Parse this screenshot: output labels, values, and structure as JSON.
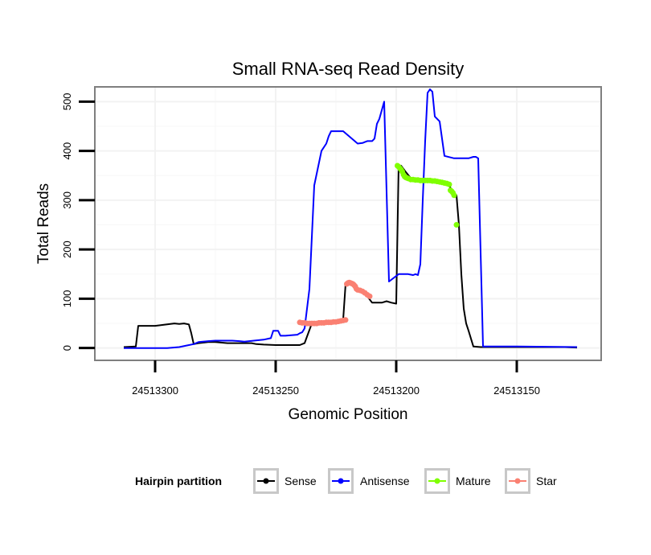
{
  "chart_data": {
    "type": "line",
    "title": "Small RNA-seq Read Density",
    "xlabel": "Genomic Position",
    "ylabel": "Total Reads",
    "x_reversed": true,
    "xlim": [
      24513325,
      24513115
    ],
    "ylim": [
      -25,
      530
    ],
    "x_ticks": [
      24513300,
      24513250,
      24513200,
      24513150
    ],
    "x_tick_labels": [
      "24513300",
      "24513250",
      "24513200",
      "24513150"
    ],
    "y_ticks": [
      0,
      100,
      200,
      300,
      400,
      500
    ],
    "y_tick_labels": [
      "0",
      "100",
      "200",
      "300",
      "400",
      "500"
    ],
    "grid": true,
    "legend": {
      "title": "Hairpin partition",
      "position": "bottom",
      "entries": [
        {
          "name": "Sense",
          "color": "#000000"
        },
        {
          "name": "Antisense",
          "color": "#0000ff"
        },
        {
          "name": "Mature",
          "color": "#7fff00"
        },
        {
          "name": "Star",
          "color": "#fa8072"
        }
      ]
    },
    "series": [
      {
        "name": "Sense",
        "color": "#000000",
        "style": "line",
        "x": [
          24513313,
          24513308,
          24513307,
          24513300,
          24513295,
          24513292,
          24513290,
          24513288,
          24513286,
          24513285,
          24513284,
          24513282,
          24513278,
          24513275,
          24513270,
          24513265,
          24513260,
          24513258,
          24513255,
          24513250,
          24513245,
          24513240,
          24513238,
          24513235,
          24513230,
          24513225,
          24513222,
          24513221,
          24513220,
          24513218,
          24513216,
          24513214,
          24513212,
          24513210,
          24513206,
          24513204,
          24513202,
          24513200,
          24513199,
          24513198,
          24513196,
          24513194,
          24513190,
          24513185,
          24513180,
          24513178,
          24513177,
          24513175,
          24513174,
          24513173,
          24513172,
          24513171,
          24513170,
          24513168,
          24513165,
          24513160,
          24513150,
          24513140,
          24513130,
          24513125
        ],
        "y": [
          2,
          3,
          45,
          45,
          48,
          50,
          49,
          50,
          48,
          30,
          8,
          10,
          12,
          12,
          10,
          10,
          10,
          8,
          7,
          6,
          6,
          6,
          10,
          50,
          53,
          55,
          58,
          130,
          133,
          130,
          120,
          112,
          105,
          92,
          92,
          95,
          92,
          90,
          370,
          370,
          357,
          345,
          342,
          340,
          335,
          330,
          320,
          310,
          250,
          150,
          80,
          50,
          35,
          3,
          2,
          2,
          2,
          2,
          2,
          1
        ]
      },
      {
        "name": "Antisense",
        "color": "#0000ff",
        "style": "line",
        "x": [
          24513313,
          24513295,
          24513290,
          24513287,
          24513284,
          24513282,
          24513278,
          24513275,
          24513268,
          24513265,
          24513263,
          24513261,
          24513255,
          24513252,
          24513251,
          24513249,
          24513248,
          24513246,
          24513241,
          24513240,
          24513239,
          24513238,
          24513236,
          24513234,
          24513231,
          24513229,
          24513228,
          24513227,
          24513222,
          24513216,
          24513214,
          24513213,
          24513212,
          24513210,
          24513209,
          24513208,
          24513207,
          24513205,
          24513203,
          24513199,
          24513195,
          24513193,
          24513192,
          24513191,
          24513190,
          24513189,
          24513188,
          24513187,
          24513186,
          24513185,
          24513184,
          24513182,
          24513180,
          24513176,
          24513172,
          24513170,
          24513168,
          24513167,
          24513166,
          24513164,
          24513150,
          24513125
        ],
        "y": [
          0,
          0,
          2,
          5,
          8,
          12,
          14,
          15,
          15,
          14,
          13,
          14,
          17,
          20,
          35,
          35,
          25,
          25,
          27,
          30,
          32,
          40,
          120,
          330,
          400,
          415,
          430,
          440,
          440,
          415,
          416,
          418,
          420,
          420,
          425,
          455,
          465,
          500,
          135,
          150,
          150,
          148,
          150,
          148,
          170,
          300,
          420,
          518,
          525,
          520,
          470,
          460,
          390,
          385,
          385,
          385,
          388,
          388,
          385,
          3,
          3,
          2
        ]
      },
      {
        "name": "Mature",
        "color": "#7fff00",
        "style": "points",
        "x": [
          24513199.5,
          24513199,
          24513198.5,
          24513198,
          24513197.5,
          24513197,
          24513196.5,
          24513196,
          24513195.5,
          24513195,
          24513194,
          24513193,
          24513192,
          24513191,
          24513190,
          24513189,
          24513188,
          24513187,
          24513186,
          24513185,
          24513184,
          24513183,
          24513182,
          24513181,
          24513180,
          24513179,
          24513178,
          24513177.5,
          24513177,
          24513176.5,
          24513176,
          24513175
        ],
        "y": [
          370,
          368,
          365,
          362,
          358,
          352,
          348,
          346,
          345,
          344,
          342,
          342,
          341,
          341,
          340,
          340,
          340,
          340,
          340,
          339,
          339,
          338,
          337,
          336,
          335,
          334,
          332,
          320,
          318,
          315,
          310,
          250
        ]
      },
      {
        "name": "Star",
        "color": "#fa8072",
        "style": "points",
        "x": [
          24513240,
          24513239,
          24513238,
          24513237,
          24513236,
          24513235,
          24513234,
          24513233,
          24513232,
          24513231,
          24513230,
          24513229,
          24513228,
          24513227,
          24513226,
          24513225,
          24513224,
          24513223,
          24513222,
          24513221,
          24513220.5,
          24513220,
          24513219.5,
          24513219,
          24513218.5,
          24513218,
          24513217.5,
          24513217,
          24513216.5,
          24513216,
          24513215,
          24513214,
          24513213,
          24513212,
          24513211
        ],
        "y": [
          52,
          51,
          51,
          50,
          50,
          50,
          50,
          50,
          51,
          51,
          51,
          52,
          52,
          52,
          53,
          53,
          54,
          55,
          56,
          57,
          130,
          132,
          133,
          132,
          131,
          130,
          128,
          125,
          120,
          118,
          117,
          115,
          112,
          108,
          105
        ]
      }
    ]
  }
}
